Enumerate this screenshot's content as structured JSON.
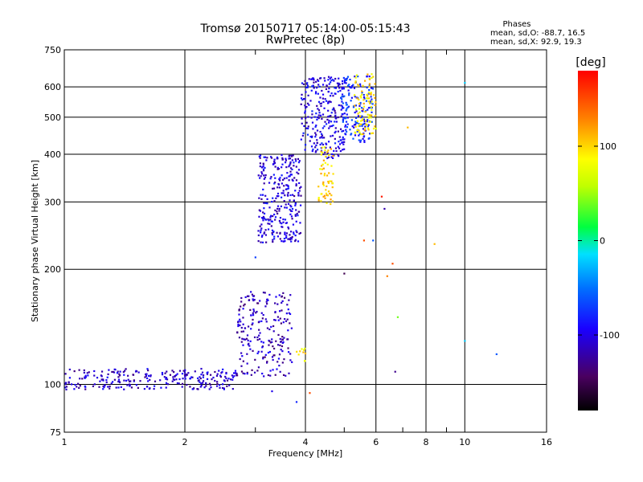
{
  "chart_data": {
    "type": "scatter",
    "title": "Tromsø 20150717 05:14:00-05:15:43",
    "subtitle": "RwPretec (8p)",
    "xlabel": "Frequency [MHz]",
    "ylabel": "Stationary phase Virtual Height [km]",
    "x_scale": "log",
    "y_scale": "log",
    "xlim": [
      1,
      16
    ],
    "ylim": [
      75,
      750
    ],
    "x_ticks": [
      1,
      2,
      4,
      6,
      8,
      10,
      16
    ],
    "x_tick_labels": [
      "1",
      "2",
      "4",
      "6",
      "8",
      "10",
      "16"
    ],
    "x_minor_ticks": [
      3,
      5,
      7,
      9
    ],
    "y_ticks": [
      75,
      100,
      200,
      300,
      400,
      500,
      600,
      750
    ],
    "y_tick_labels": [
      "75",
      "100",
      "200",
      "300",
      "400",
      "500",
      "600",
      "750"
    ],
    "grid": true,
    "stats": {
      "heading": "Phases",
      "line_o": "mean, sd,O: -88.7, 16.5",
      "line_x": "mean, sd,X:  92.9, 19.3"
    },
    "colorbar": {
      "label": "[deg]",
      "range": [
        -180,
        180
      ],
      "ticks": [
        100,
        0,
        -100
      ],
      "tick_labels": [
        "100",
        "0",
        "-100"
      ]
    },
    "traces": [
      {
        "name": "",
        "x_range": [
          1.0,
          2.7
        ],
        "y_range": [
          97,
          110
        ],
        "phase": -110,
        "points": 260
      },
      {
        "name": "",
        "x_range": [
          2.7,
          3.7
        ],
        "y_range": [
          105,
          175
        ],
        "phase": -115,
        "points": 220
      },
      {
        "name": "",
        "x_range": [
          3.05,
          3.9
        ],
        "y_range": [
          235,
          400
        ],
        "phase": -105,
        "points": 300
      },
      {
        "name": "",
        "x_range": [
          3.9,
          5.0
        ],
        "y_range": [
          390,
          640
        ],
        "phase": -100,
        "points": 260
      },
      {
        "name": "",
        "x_range": [
          4.9,
          5.9
        ],
        "y_range": [
          430,
          640
        ],
        "phase": -80,
        "points": 160
      },
      {
        "name": "",
        "x_range": [
          4.3,
          4.7
        ],
        "y_range": [
          295,
          420
        ],
        "phase": 100,
        "points": 60
      },
      {
        "name": "",
        "x_range": [
          5.3,
          6.0
        ],
        "y_range": [
          450,
          650
        ],
        "phase": 95,
        "points": 90
      },
      {
        "name": "",
        "x_range": [
          3.8,
          4.0
        ],
        "y_range": [
          115,
          125
        ],
        "phase": 95,
        "points": 10
      }
    ],
    "scattered_points": [
      {
        "x": 3.0,
        "y": 215,
        "phase": -70
      },
      {
        "x": 5.6,
        "y": 238,
        "phase": 150
      },
      {
        "x": 5.9,
        "y": 238,
        "phase": -60
      },
      {
        "x": 6.2,
        "y": 310,
        "phase": 170
      },
      {
        "x": 6.3,
        "y": 288,
        "phase": -120
      },
      {
        "x": 6.6,
        "y": 207,
        "phase": 150
      },
      {
        "x": 6.4,
        "y": 192,
        "phase": 130
      },
      {
        "x": 6.8,
        "y": 150,
        "phase": 40
      },
      {
        "x": 6.7,
        "y": 108,
        "phase": -130
      },
      {
        "x": 7.2,
        "y": 470,
        "phase": 110
      },
      {
        "x": 8.4,
        "y": 233,
        "phase": 110
      },
      {
        "x": 10.0,
        "y": 130,
        "phase": -20
      },
      {
        "x": 12.0,
        "y": 120,
        "phase": -60
      },
      {
        "x": 10.0,
        "y": 615,
        "phase": -20
      },
      {
        "x": 5.0,
        "y": 195,
        "phase": -150
      },
      {
        "x": 3.3,
        "y": 96,
        "phase": -100
      },
      {
        "x": 3.8,
        "y": 90,
        "phase": -80
      },
      {
        "x": 4.1,
        "y": 95,
        "phase": 150
      }
    ]
  }
}
